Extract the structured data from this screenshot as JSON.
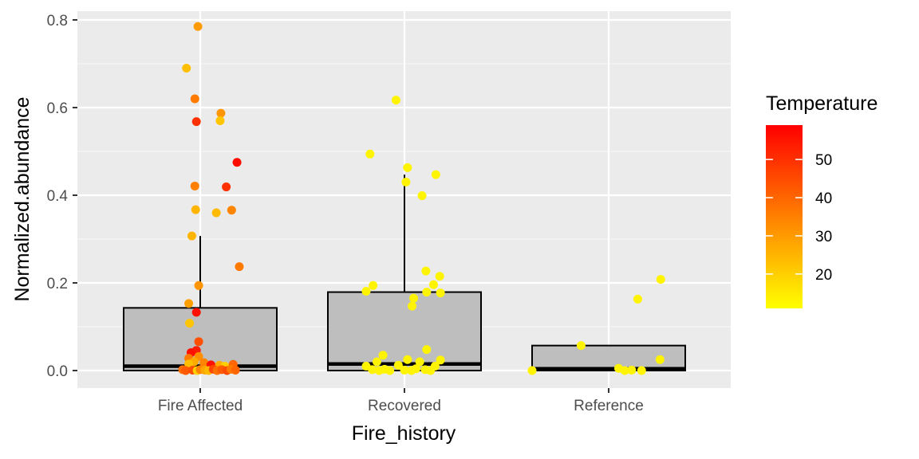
{
  "chart_data": {
    "type": "boxplot",
    "xlabel": "Fire_history",
    "ylabel": "Normalized.abundance",
    "categories": [
      "Fire Affected",
      "Recovered",
      "Reference"
    ],
    "ylim": [
      -0.04,
      0.82
    ],
    "y_ticks": [
      0.0,
      0.2,
      0.4,
      0.6,
      0.8
    ],
    "y_tick_labels": [
      "0.0",
      "0.2",
      "0.4",
      "0.6",
      "0.8"
    ],
    "grid": true,
    "boxes": [
      {
        "category": "Fire Affected",
        "q1": 0.0,
        "median": 0.01,
        "q3": 0.143,
        "whisker_low": 0.0,
        "whisker_high": 0.307
      },
      {
        "category": "Recovered",
        "q1": 0.0,
        "median": 0.015,
        "q3": 0.179,
        "whisker_low": 0.0,
        "whisker_high": 0.447
      },
      {
        "category": "Reference",
        "q1": 0.0,
        "median": 0.004,
        "q3": 0.057,
        "whisker_low": 0.0,
        "whisker_high": 0.057
      }
    ],
    "points": [
      {
        "category": "Fire Affected",
        "jitter": -0.03,
        "y": 0.785,
        "temperature": 30
      },
      {
        "category": "Fire Affected",
        "jitter": -0.18,
        "y": 0.69,
        "temperature": 23
      },
      {
        "category": "Fire Affected",
        "jitter": -0.07,
        "y": 0.62,
        "temperature": 36
      },
      {
        "category": "Fire Affected",
        "jitter": 0.27,
        "y": 0.587,
        "temperature": 31
      },
      {
        "category": "Fire Affected",
        "jitter": 0.26,
        "y": 0.57,
        "temperature": 22
      },
      {
        "category": "Fire Affected",
        "jitter": -0.05,
        "y": 0.568,
        "temperature": 50
      },
      {
        "category": "Fire Affected",
        "jitter": 0.48,
        "y": 0.475,
        "temperature": 57
      },
      {
        "category": "Fire Affected",
        "jitter": -0.07,
        "y": 0.421,
        "temperature": 35
      },
      {
        "category": "Fire Affected",
        "jitter": 0.34,
        "y": 0.419,
        "temperature": 50
      },
      {
        "category": "Fire Affected",
        "jitter": -0.06,
        "y": 0.367,
        "temperature": 25
      },
      {
        "category": "Fire Affected",
        "jitter": 0.41,
        "y": 0.366,
        "temperature": 34
      },
      {
        "category": "Fire Affected",
        "jitter": 0.21,
        "y": 0.36,
        "temperature": 24
      },
      {
        "category": "Fire Affected",
        "jitter": -0.11,
        "y": 0.307,
        "temperature": 25
      },
      {
        "category": "Fire Affected",
        "jitter": 0.51,
        "y": 0.237,
        "temperature": 36
      },
      {
        "category": "Fire Affected",
        "jitter": -0.02,
        "y": 0.194,
        "temperature": 31
      },
      {
        "category": "Fire Affected",
        "jitter": -0.15,
        "y": 0.153,
        "temperature": 29
      },
      {
        "category": "Fire Affected",
        "jitter": -0.05,
        "y": 0.133,
        "temperature": 56
      },
      {
        "category": "Fire Affected",
        "jitter": -0.14,
        "y": 0.108,
        "temperature": 22
      },
      {
        "category": "Fire Affected",
        "jitter": -0.02,
        "y": 0.066,
        "temperature": 44
      },
      {
        "category": "Fire Affected",
        "jitter": -0.05,
        "y": 0.046,
        "temperature": 54
      },
      {
        "category": "Fire Affected",
        "jitter": -0.12,
        "y": 0.041,
        "temperature": 56
      },
      {
        "category": "Fire Affected",
        "jitter": -0.02,
        "y": 0.032,
        "temperature": 32
      },
      {
        "category": "Fire Affected",
        "jitter": -0.15,
        "y": 0.028,
        "temperature": 36
      },
      {
        "category": "Fire Affected",
        "jitter": -0.08,
        "y": 0.02,
        "temperature": 27
      },
      {
        "category": "Fire Affected",
        "jitter": -0.15,
        "y": 0.015,
        "temperature": 23
      },
      {
        "category": "Fire Affected",
        "jitter": 0.05,
        "y": 0.018,
        "temperature": 34
      },
      {
        "category": "Fire Affected",
        "jitter": 0.14,
        "y": 0.013,
        "temperature": 56
      },
      {
        "category": "Fire Affected",
        "jitter": 0.25,
        "y": 0.012,
        "temperature": 27
      },
      {
        "category": "Fire Affected",
        "jitter": 0.32,
        "y": 0.01,
        "temperature": 20
      },
      {
        "category": "Fire Affected",
        "jitter": 0.43,
        "y": 0.014,
        "temperature": 40
      },
      {
        "category": "Fire Affected",
        "jitter": -0.23,
        "y": 0.002,
        "temperature": 38
      },
      {
        "category": "Fire Affected",
        "jitter": -0.19,
        "y": 0.0,
        "temperature": 42
      },
      {
        "category": "Fire Affected",
        "jitter": -0.1,
        "y": 0.001,
        "temperature": 44
      },
      {
        "category": "Fire Affected",
        "jitter": -0.04,
        "y": 0.0,
        "temperature": 20
      },
      {
        "category": "Fire Affected",
        "jitter": 0.0,
        "y": 0.002,
        "temperature": 34
      },
      {
        "category": "Fire Affected",
        "jitter": 0.06,
        "y": 0.001,
        "temperature": 28
      },
      {
        "category": "Fire Affected",
        "jitter": 0.11,
        "y": 0.0,
        "temperature": 24
      },
      {
        "category": "Fire Affected",
        "jitter": 0.17,
        "y": 0.003,
        "temperature": 46
      },
      {
        "category": "Fire Affected",
        "jitter": 0.22,
        "y": 0.0,
        "temperature": 38
      },
      {
        "category": "Fire Affected",
        "jitter": 0.28,
        "y": 0.002,
        "temperature": 42
      },
      {
        "category": "Fire Affected",
        "jitter": 0.35,
        "y": 0.0,
        "temperature": 45
      },
      {
        "category": "Fire Affected",
        "jitter": 0.4,
        "y": 0.003,
        "temperature": 36
      },
      {
        "category": "Fire Affected",
        "jitter": 0.46,
        "y": 0.001,
        "temperature": 40
      },
      {
        "category": "Recovered",
        "jitter": -0.11,
        "y": 0.617,
        "temperature": 13
      },
      {
        "category": "Recovered",
        "jitter": -0.45,
        "y": 0.494,
        "temperature": 13
      },
      {
        "category": "Recovered",
        "jitter": 0.04,
        "y": 0.463,
        "temperature": 13
      },
      {
        "category": "Recovered",
        "jitter": 0.41,
        "y": 0.447,
        "temperature": 13
      },
      {
        "category": "Recovered",
        "jitter": 0.02,
        "y": 0.43,
        "temperature": 13
      },
      {
        "category": "Recovered",
        "jitter": 0.23,
        "y": 0.399,
        "temperature": 13
      },
      {
        "category": "Recovered",
        "jitter": 0.28,
        "y": 0.227,
        "temperature": 13
      },
      {
        "category": "Recovered",
        "jitter": 0.46,
        "y": 0.215,
        "temperature": 13
      },
      {
        "category": "Recovered",
        "jitter": 0.38,
        "y": 0.196,
        "temperature": 13
      },
      {
        "category": "Recovered",
        "jitter": -0.41,
        "y": 0.194,
        "temperature": 13
      },
      {
        "category": "Recovered",
        "jitter": -0.5,
        "y": 0.181,
        "temperature": 13
      },
      {
        "category": "Recovered",
        "jitter": 0.29,
        "y": 0.179,
        "temperature": 13
      },
      {
        "category": "Recovered",
        "jitter": 0.47,
        "y": 0.177,
        "temperature": 13
      },
      {
        "category": "Recovered",
        "jitter": 0.12,
        "y": 0.165,
        "temperature": 13
      },
      {
        "category": "Recovered",
        "jitter": 0.1,
        "y": 0.147,
        "temperature": 13
      },
      {
        "category": "Recovered",
        "jitter": 0.29,
        "y": 0.048,
        "temperature": 13
      },
      {
        "category": "Recovered",
        "jitter": -0.28,
        "y": 0.035,
        "temperature": 13
      },
      {
        "category": "Recovered",
        "jitter": 0.04,
        "y": 0.025,
        "temperature": 13
      },
      {
        "category": "Recovered",
        "jitter": 0.47,
        "y": 0.024,
        "temperature": 13
      },
      {
        "category": "Recovered",
        "jitter": -0.36,
        "y": 0.02,
        "temperature": 13
      },
      {
        "category": "Recovered",
        "jitter": 0.2,
        "y": 0.02,
        "temperature": 13
      },
      {
        "category": "Recovered",
        "jitter": -0.5,
        "y": 0.01,
        "temperature": 13
      },
      {
        "category": "Recovered",
        "jitter": -0.08,
        "y": 0.012,
        "temperature": 13
      },
      {
        "category": "Recovered",
        "jitter": 0.4,
        "y": 0.01,
        "temperature": 13
      },
      {
        "category": "Recovered",
        "jitter": -0.42,
        "y": 0.002,
        "temperature": 13
      },
      {
        "category": "Recovered",
        "jitter": -0.33,
        "y": 0.0,
        "temperature": 13
      },
      {
        "category": "Recovered",
        "jitter": -0.26,
        "y": 0.003,
        "temperature": 13
      },
      {
        "category": "Recovered",
        "jitter": -0.19,
        "y": 0.0,
        "temperature": 13
      },
      {
        "category": "Recovered",
        "jitter": 0.0,
        "y": 0.001,
        "temperature": 13
      },
      {
        "category": "Recovered",
        "jitter": 0.09,
        "y": 0.0,
        "temperature": 13
      },
      {
        "category": "Recovered",
        "jitter": 0.15,
        "y": 0.004,
        "temperature": 13
      },
      {
        "category": "Recovered",
        "jitter": 0.27,
        "y": 0.002,
        "temperature": 13
      },
      {
        "category": "Recovered",
        "jitter": 0.34,
        "y": 0.0,
        "temperature": 13
      },
      {
        "category": "Reference",
        "jitter": 0.68,
        "y": 0.208,
        "temperature": 13
      },
      {
        "category": "Reference",
        "jitter": 0.38,
        "y": 0.163,
        "temperature": 13
      },
      {
        "category": "Reference",
        "jitter": -0.36,
        "y": 0.057,
        "temperature": 13
      },
      {
        "category": "Reference",
        "jitter": 0.67,
        "y": 0.025,
        "temperature": 13
      },
      {
        "category": "Reference",
        "jitter": -1.0,
        "y": 0.0,
        "temperature": 13
      },
      {
        "category": "Reference",
        "jitter": 0.13,
        "y": 0.005,
        "temperature": 13
      },
      {
        "category": "Reference",
        "jitter": 0.21,
        "y": 0.0,
        "temperature": 13
      },
      {
        "category": "Reference",
        "jitter": 0.3,
        "y": 0.001,
        "temperature": 13
      },
      {
        "category": "Reference",
        "jitter": 0.43,
        "y": 0.0,
        "temperature": 13
      }
    ],
    "legend": {
      "title": "Temperature",
      "placement": "right",
      "ticks": [
        20,
        30,
        40,
        50
      ],
      "tick_labels": [
        "20",
        "30",
        "40",
        "50"
      ],
      "range": [
        11,
        59
      ],
      "low_color": "#ffff00",
      "high_color": "#ff0000"
    },
    "colors": {
      "panel_background": "#ebebeb",
      "grid_major": "#ffffff",
      "box_fill": "#bebebe",
      "box_stroke": "#000000",
      "tick_label": "#4d4d4d"
    }
  }
}
